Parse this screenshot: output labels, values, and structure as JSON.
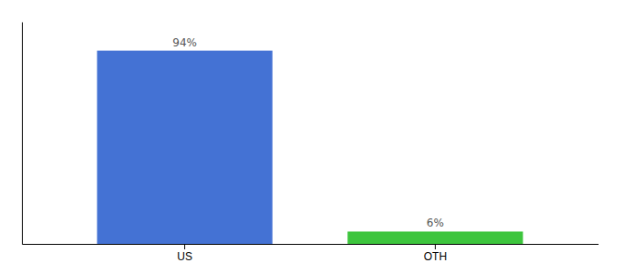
{
  "chart_data": {
    "type": "bar",
    "categories": [
      "US",
      "OTH"
    ],
    "values": [
      94,
      6
    ],
    "colors": [
      "#4472d4",
      "#3dc53d"
    ],
    "value_labels": [
      "94%",
      "6%"
    ],
    "data_labels": true,
    "ylim": [
      0,
      108
    ],
    "tick_labels": "x",
    "grid": false
  }
}
